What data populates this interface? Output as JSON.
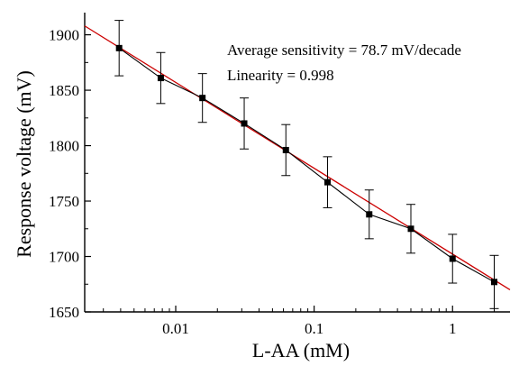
{
  "chart_data": {
    "type": "scatter",
    "title": "",
    "xlabel": "L-AA (mM)",
    "ylabel": "Response voltage (mV)",
    "x_scale": "log",
    "xlim": [
      0.0022,
      2.6
    ],
    "ylim": [
      1650,
      1920
    ],
    "x_ticks": [
      {
        "value": 0.01,
        "label": "0.01"
      },
      {
        "value": 0.1,
        "label": "0.1"
      },
      {
        "value": 1,
        "label": "1"
      }
    ],
    "y_ticks": [
      {
        "value": 1650,
        "label": "1650"
      },
      {
        "value": 1700,
        "label": "1700"
      },
      {
        "value": 1750,
        "label": "1750"
      },
      {
        "value": 1800,
        "label": "1800"
      },
      {
        "value": 1850,
        "label": "1850"
      },
      {
        "value": 1900,
        "label": "1900"
      }
    ],
    "grid": false,
    "series": [
      {
        "color": "#000000",
        "marker": "square",
        "points": [
          {
            "x": 0.0039,
            "y": 1888,
            "err": 25
          },
          {
            "x": 0.0078,
            "y": 1861,
            "err": 23
          },
          {
            "x": 0.0156,
            "y": 1843,
            "err": 22
          },
          {
            "x": 0.03125,
            "y": 1820,
            "err": 23
          },
          {
            "x": 0.0625,
            "y": 1796,
            "err": 23
          },
          {
            "x": 0.125,
            "y": 1767,
            "err": 23
          },
          {
            "x": 0.25,
            "y": 1738,
            "err": 22
          },
          {
            "x": 0.5,
            "y": 1725,
            "err": 22
          },
          {
            "x": 1.0,
            "y": 1698,
            "err": 22
          },
          {
            "x": 2.0,
            "y": 1677,
            "err": 24
          }
        ]
      }
    ],
    "fit_line": {
      "color": "#cc0000",
      "x": [
        0.0022,
        2.6
      ],
      "y": [
        1908,
        1670
      ]
    },
    "annotations": [
      "Average sensitivity = 78.7 mV/decade",
      "Linearity = 0.998"
    ]
  }
}
